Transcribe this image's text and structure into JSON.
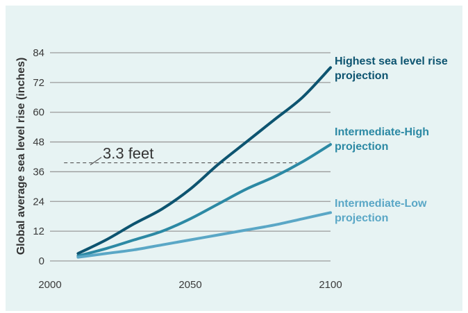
{
  "chart_data": {
    "type": "line",
    "ylabel": "Global average sea level rise (inches)",
    "xlabel": "",
    "xlim": [
      2000,
      2100
    ],
    "ylim": [
      0,
      84
    ],
    "x_ticks": [
      2000,
      2050,
      2100
    ],
    "y_ticks": [
      0,
      12,
      24,
      36,
      48,
      60,
      72,
      84
    ],
    "grid": "horizontal",
    "legend": "labels at right end of lines",
    "reference_line": {
      "y": 39.6,
      "label": "3.3 feet"
    },
    "x": [
      2010,
      2020,
      2030,
      2040,
      2050,
      2060,
      2070,
      2080,
      2090,
      2100
    ],
    "series": [
      {
        "name": "Highest sea level rise projection",
        "label_lines": [
          "Highest sea level rise",
          "projection"
        ],
        "color": "#0d5470",
        "values": [
          3,
          8.5,
          15,
          21,
          29,
          39,
          48,
          57,
          66,
          78
        ]
      },
      {
        "name": "Intermediate-High projection",
        "label_lines": [
          "Intermediate-High",
          "projection"
        ],
        "color": "#2c89a4",
        "values": [
          2,
          5,
          8.5,
          12,
          17,
          23,
          29,
          34,
          40,
          47
        ]
      },
      {
        "name": "Intermediate-Low projection",
        "label_lines": [
          "Intermediate-Low",
          "projection"
        ],
        "color": "#5aa7c6",
        "values": [
          1.5,
          3,
          4.5,
          6.5,
          8.5,
          10.5,
          12.5,
          14.5,
          17,
          19.5
        ]
      }
    ]
  }
}
